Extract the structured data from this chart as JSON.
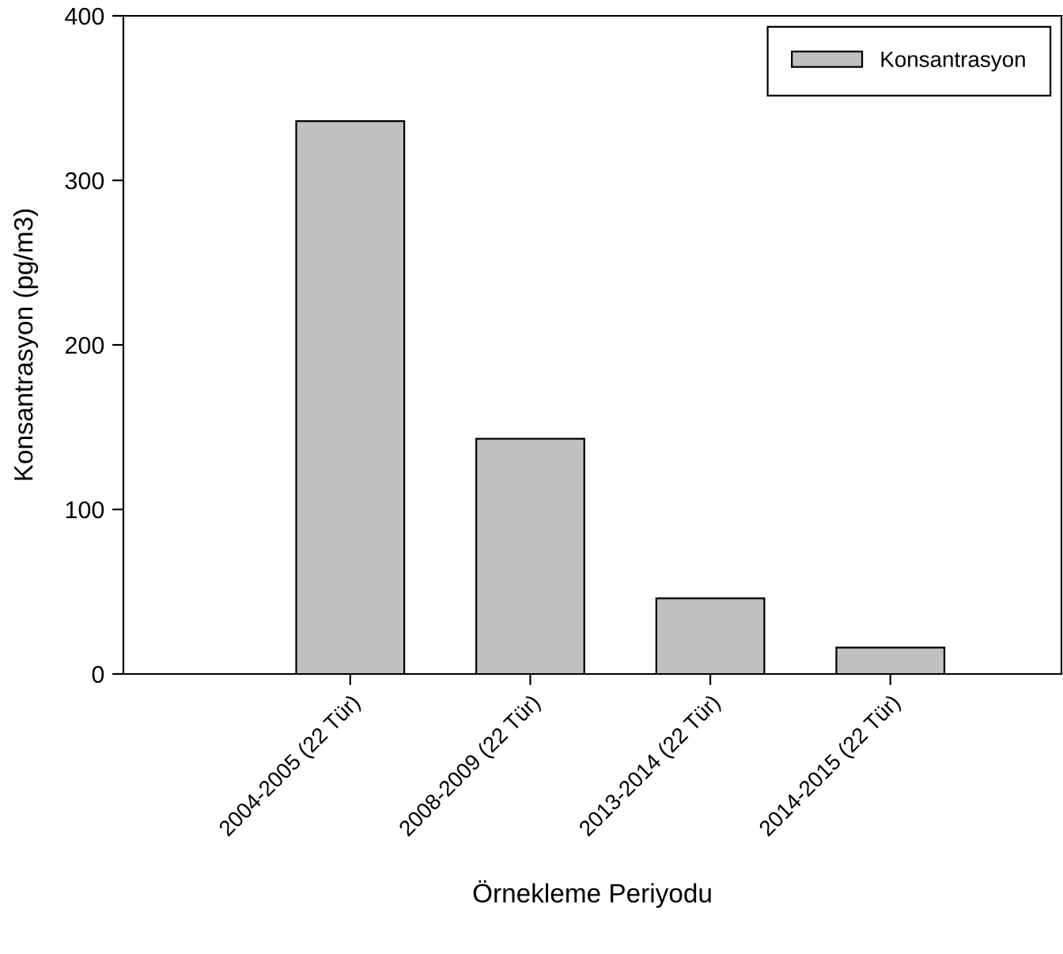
{
  "chart_data": {
    "type": "bar",
    "xlabel": "Örnekleme Periyodu",
    "ylabel": "Konsantrasyon (pg/m3)",
    "categories": [
      "2004-2005 (22 Tür)",
      "2008-2009 (22 Tür)",
      "2013-2014 (22 Tür)",
      "2014-2015 (22 Tür)"
    ],
    "series": [
      {
        "name": "Konsantrasyon",
        "color": "#c0c0c0",
        "values": [
          336,
          143,
          46,
          16
        ]
      }
    ],
    "ylim": [
      0,
      400
    ],
    "yticks": [
      0,
      100,
      200,
      300,
      400
    ],
    "grid": false,
    "legend": "top right"
  }
}
